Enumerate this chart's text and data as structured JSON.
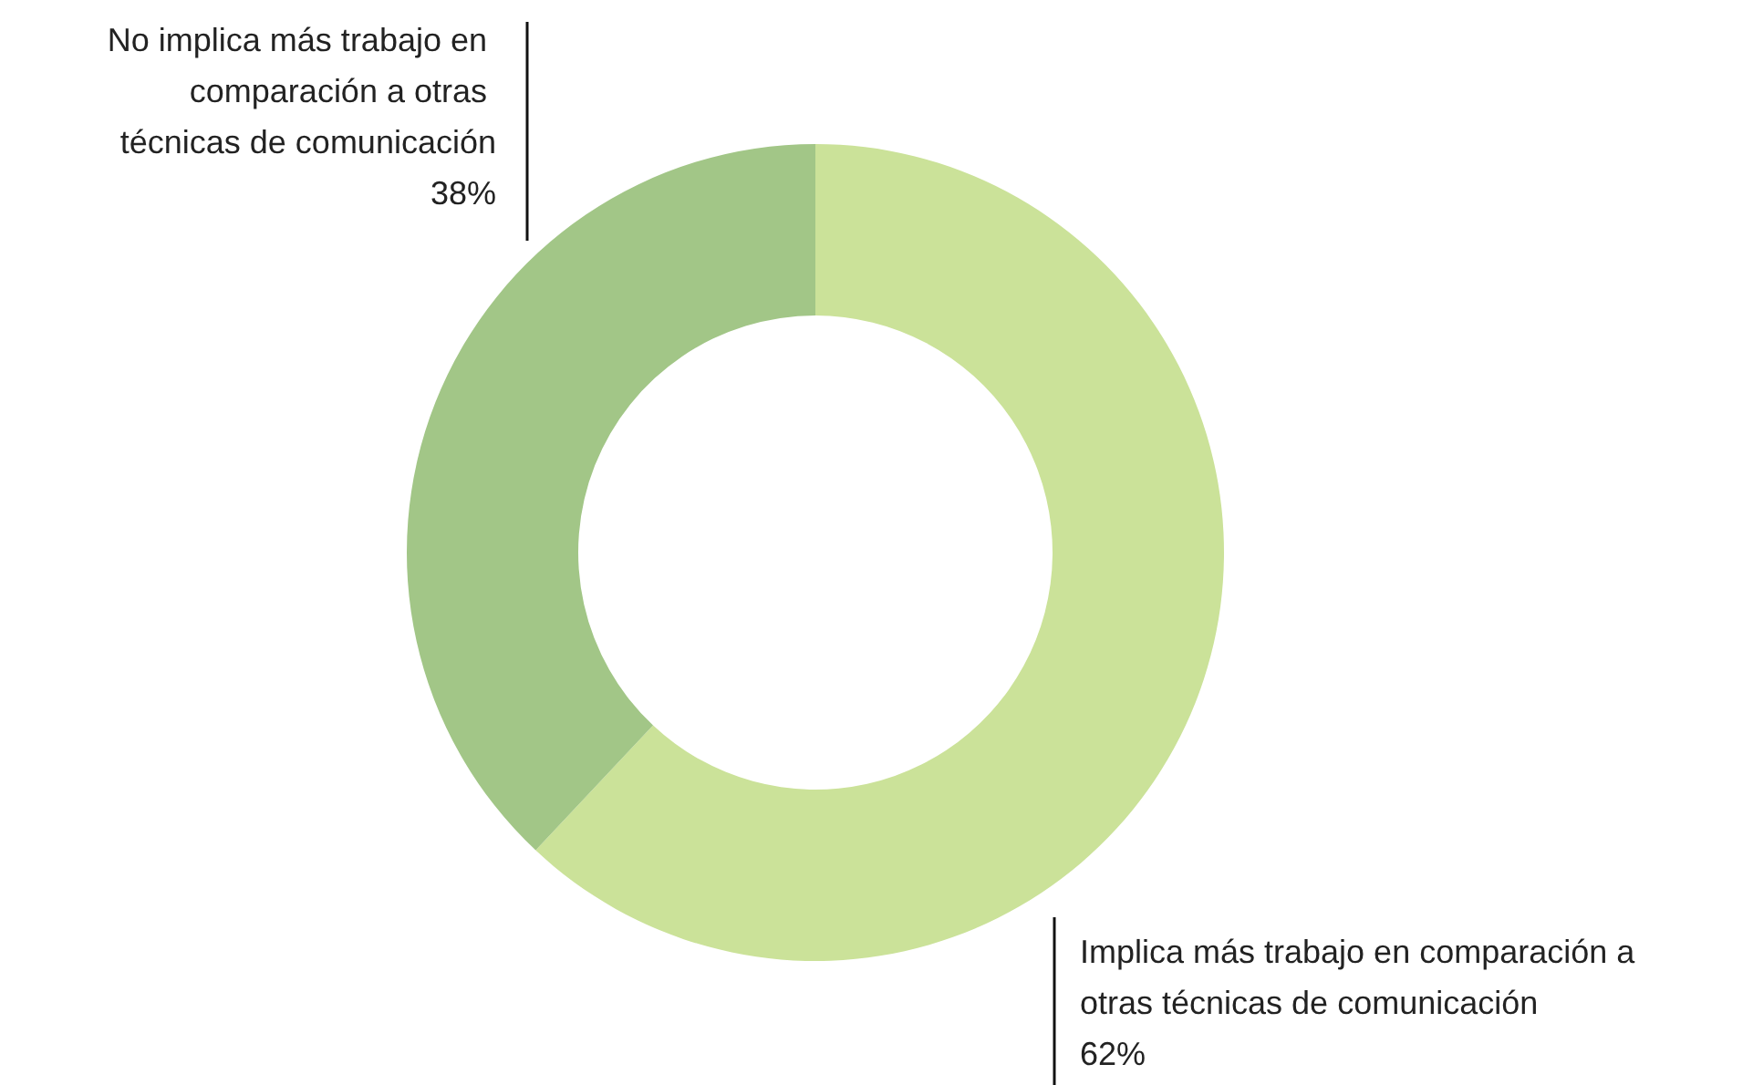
{
  "chart_data": {
    "type": "donut",
    "categories": [
      "Implica más trabajo en comparación a otras técnicas de comunicación",
      "No implica más trabajo en comparación a otras técnicas de comunicación"
    ],
    "values": [
      62,
      38
    ],
    "colors": [
      "#cbe299",
      "#a2c687"
    ],
    "value_labels": [
      "62%",
      "38%"
    ],
    "legend": false
  }
}
